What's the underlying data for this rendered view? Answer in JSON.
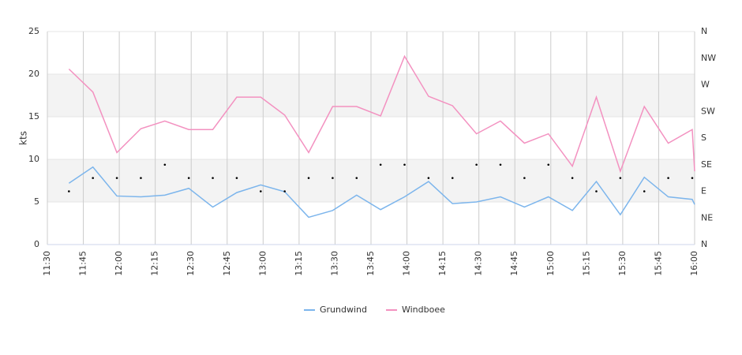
{
  "chart_data": {
    "type": "line",
    "y_axis_label": "kts",
    "x": [
      "11:39",
      "11:49",
      "11:59",
      "12:09",
      "12:19",
      "12:29",
      "12:39",
      "12:49",
      "12:59",
      "13:09",
      "13:19",
      "13:29",
      "13:39",
      "13:49",
      "13:59",
      "14:09",
      "14:19",
      "14:29",
      "14:39",
      "14:49",
      "14:59",
      "15:09",
      "15:19",
      "15:29",
      "15:39",
      "15:49",
      "15:59",
      "16:00"
    ],
    "xlim": [
      "11:30",
      "16:00"
    ],
    "xticks": [
      "11:30",
      "11:45",
      "12:00",
      "12:15",
      "12:30",
      "12:45",
      "13:00",
      "13:15",
      "13:30",
      "13:45",
      "14:00",
      "14:15",
      "14:30",
      "14:45",
      "15:00",
      "15:15",
      "15:30",
      "15:45",
      "16:00"
    ],
    "ylim": [
      0,
      25
    ],
    "yticks": [
      0,
      5,
      10,
      15,
      20,
      25
    ],
    "y2lim": [
      0,
      360
    ],
    "y2ticks": [
      {
        "value": 0,
        "label": "N"
      },
      {
        "value": 45,
        "label": "NE"
      },
      {
        "value": 90,
        "label": "E"
      },
      {
        "value": 135,
        "label": "SE"
      },
      {
        "value": 180,
        "label": "S"
      },
      {
        "value": 225,
        "label": "SW"
      },
      {
        "value": 270,
        "label": "W"
      },
      {
        "value": 315,
        "label": "NW"
      },
      {
        "value": 360,
        "label": "N"
      }
    ],
    "grid": true,
    "alternate_bands": "#f3f3f3",
    "legend": "bottom",
    "series": [
      {
        "name": "Grundwind",
        "color": "#7cb5ec",
        "values": [
          7.2,
          9.1,
          5.7,
          5.6,
          5.8,
          6.6,
          4.4,
          6.1,
          7.0,
          6.2,
          3.2,
          4.0,
          5.8,
          4.1,
          5.6,
          7.4,
          4.8,
          5.0,
          5.6,
          4.4,
          5.6,
          4.0,
          7.4,
          3.5,
          7.9,
          5.6,
          5.3,
          4.7
        ]
      },
      {
        "name": "Windboee",
        "color": "#f391c0",
        "values": [
          20.6,
          17.9,
          10.8,
          13.6,
          14.5,
          13.5,
          13.5,
          17.3,
          17.3,
          15.2,
          10.8,
          16.2,
          16.2,
          15.1,
          22.1,
          17.4,
          16.3,
          13.0,
          14.5,
          11.9,
          13.0,
          9.2,
          17.3,
          8.6,
          16.2,
          11.9,
          13.5,
          8.6
        ]
      }
    ],
    "direction": {
      "axis": "y2",
      "color": "#000000",
      "values": [
        90,
        112.5,
        112.5,
        112.5,
        135,
        112.5,
        112.5,
        112.5,
        90,
        90,
        112.5,
        112.5,
        112.5,
        135,
        135,
        112.5,
        112.5,
        135,
        135,
        112.5,
        135,
        112.5,
        90,
        112.5,
        90,
        112.5,
        112.5,
        null
      ]
    }
  }
}
